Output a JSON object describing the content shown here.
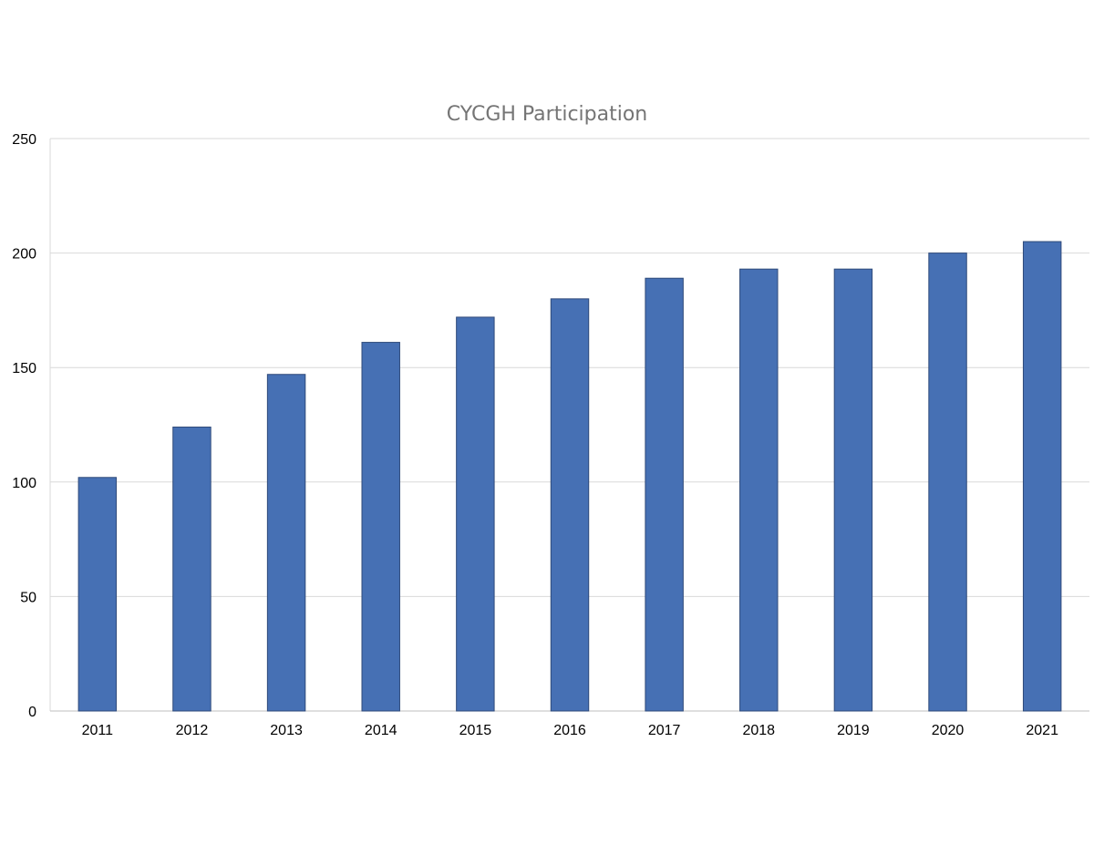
{
  "chart_data": {
    "type": "bar",
    "title": "CYCGH Participation",
    "xlabel": "",
    "ylabel": "",
    "categories": [
      "2011",
      "2012",
      "2013",
      "2014",
      "2015",
      "2016",
      "2017",
      "2018",
      "2019",
      "2020",
      "2021"
    ],
    "values": [
      102,
      124,
      147,
      161,
      172,
      180,
      189,
      193,
      193,
      200,
      205
    ],
    "ylim": [
      0,
      250
    ],
    "yticks": [
      "0",
      "50",
      "100",
      "150",
      "200",
      "250"
    ],
    "grid": true,
    "legend": "none",
    "colors": {
      "bar_fill": "#4670b4",
      "bar_stroke": "#2f4a7a",
      "grid": "#d9d9d9",
      "title": "#757575"
    }
  }
}
